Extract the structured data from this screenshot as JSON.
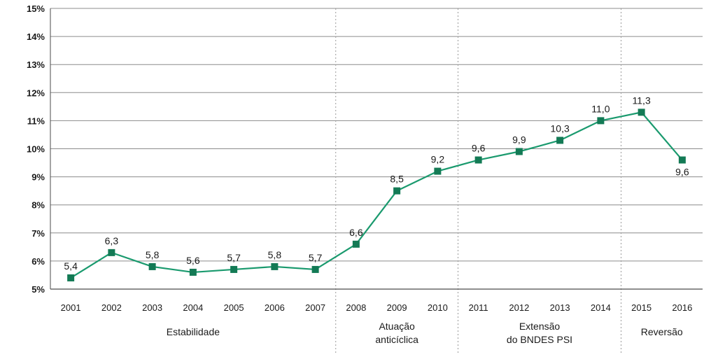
{
  "chart_data": {
    "type": "line",
    "x": [
      "2001",
      "2002",
      "2003",
      "2004",
      "2005",
      "2006",
      "2007",
      "2008",
      "2009",
      "2010",
      "2011",
      "2012",
      "2013",
      "2014",
      "2015",
      "2016"
    ],
    "series": [
      {
        "values": [
          5.4,
          6.3,
          5.8,
          5.6,
          5.7,
          5.8,
          5.7,
          6.6,
          8.5,
          9.2,
          9.6,
          9.9,
          10.3,
          11.0,
          11.3,
          9.6
        ],
        "labels": [
          "5,4",
          "6,3",
          "5,8",
          "5,6",
          "5,7",
          "5,8",
          "5,7",
          "6,6",
          "8,5",
          "9,2",
          "9,6",
          "9,9",
          "10,3",
          "11,0",
          "11,3",
          "9,6"
        ]
      }
    ],
    "ylim": [
      5,
      15
    ],
    "yticks": [
      "5%",
      "6%",
      "7%",
      "8%",
      "9%",
      "10%",
      "11%",
      "12%",
      "13%",
      "14%",
      "15%"
    ],
    "grid": true,
    "periods": [
      {
        "lines": [
          "Estabilidade"
        ],
        "start": "2001",
        "end": "2007"
      },
      {
        "lines": [
          "Atuação",
          "anticíclica"
        ],
        "start": "2008",
        "end": "2010"
      },
      {
        "lines": [
          "Extensão",
          "do BNDES PSI"
        ],
        "start": "2011",
        "end": "2014"
      },
      {
        "lines": [
          "Reversão"
        ],
        "start": "2015",
        "end": "2016"
      }
    ],
    "colors": {
      "line": "#1a9a6e",
      "marker": "#137a55",
      "grid": "#8c8c8c",
      "divider": "#9a9a9a"
    }
  }
}
